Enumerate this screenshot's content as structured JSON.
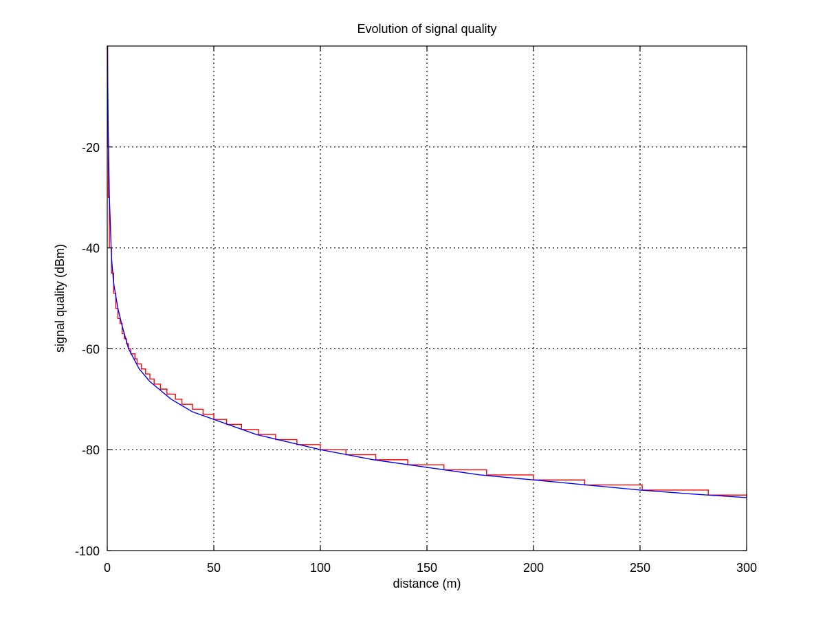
{
  "chart_data": {
    "type": "line",
    "title": "Evolution of signal quality",
    "xlabel": "distance (m)",
    "ylabel": "signal quality (dBm)",
    "xlim": [
      0,
      300
    ],
    "ylim": [
      -100,
      0
    ],
    "xticks": [
      0,
      50,
      100,
      150,
      200,
      250,
      300
    ],
    "yticks": [
      -100,
      -80,
      -60,
      -40,
      -20
    ],
    "grid": true,
    "series": [
      {
        "style": "step",
        "color": "#ff0000",
        "step_thresholds": [
          {
            "x": 0.2,
            "y": -20
          },
          {
            "x": 0.5,
            "y": -30
          },
          {
            "x": 1,
            "y": -40
          },
          {
            "x": 2,
            "y": -45
          },
          {
            "x": 3,
            "y": -49
          },
          {
            "x": 4,
            "y": -52
          },
          {
            "x": 5,
            "y": -54
          },
          {
            "x": 6,
            "y": -55
          },
          {
            "x": 7,
            "y": -57
          },
          {
            "x": 8,
            "y": -58
          },
          {
            "x": 9,
            "y": -59
          },
          {
            "x": 10,
            "y": -60
          },
          {
            "x": 11,
            "y": -61
          },
          {
            "x": 13,
            "y": -62
          },
          {
            "x": 14,
            "y": -63
          },
          {
            "x": 16,
            "y": -64
          },
          {
            "x": 18,
            "y": -65
          },
          {
            "x": 20,
            "y": -66
          },
          {
            "x": 22,
            "y": -67
          },
          {
            "x": 25,
            "y": -68
          },
          {
            "x": 28,
            "y": -69
          },
          {
            "x": 32,
            "y": -70
          },
          {
            "x": 35,
            "y": -71
          },
          {
            "x": 40,
            "y": -72
          },
          {
            "x": 45,
            "y": -73
          },
          {
            "x": 50,
            "y": -74
          },
          {
            "x": 56,
            "y": -75
          },
          {
            "x": 63,
            "y": -76
          },
          {
            "x": 71,
            "y": -77
          },
          {
            "x": 79,
            "y": -78
          },
          {
            "x": 89,
            "y": -79
          },
          {
            "x": 100,
            "y": -80
          },
          {
            "x": 112,
            "y": -81
          },
          {
            "x": 126,
            "y": -82
          },
          {
            "x": 141,
            "y": -83
          },
          {
            "x": 158,
            "y": -84
          },
          {
            "x": 178,
            "y": -85
          },
          {
            "x": 200,
            "y": -86
          },
          {
            "x": 224,
            "y": -87
          },
          {
            "x": 251,
            "y": -88
          },
          {
            "x": 282,
            "y": -89
          },
          {
            "x": 300,
            "y": -89.5
          }
        ]
      },
      {
        "style": "line",
        "color": "#0000ff",
        "points": [
          {
            "x": 0.1,
            "y": 0
          },
          {
            "x": 0.2,
            "y": -6
          },
          {
            "x": 0.5,
            "y": -18
          },
          {
            "x": 1,
            "y": -30
          },
          {
            "x": 2,
            "y": -42
          },
          {
            "x": 3,
            "y": -47
          },
          {
            "x": 5,
            "y": -52
          },
          {
            "x": 7,
            "y": -55.5
          },
          {
            "x": 10,
            "y": -60
          },
          {
            "x": 15,
            "y": -64
          },
          {
            "x": 20,
            "y": -66.5
          },
          {
            "x": 30,
            "y": -70
          },
          {
            "x": 40,
            "y": -72.5
          },
          {
            "x": 50,
            "y": -74
          },
          {
            "x": 60,
            "y": -75.5
          },
          {
            "x": 70,
            "y": -77
          },
          {
            "x": 80,
            "y": -78
          },
          {
            "x": 90,
            "y": -79
          },
          {
            "x": 100,
            "y": -80
          },
          {
            "x": 125,
            "y": -82
          },
          {
            "x": 150,
            "y": -83.5
          },
          {
            "x": 175,
            "y": -85
          },
          {
            "x": 200,
            "y": -86
          },
          {
            "x": 225,
            "y": -87
          },
          {
            "x": 250,
            "y": -88
          },
          {
            "x": 275,
            "y": -88.8
          },
          {
            "x": 300,
            "y": -89.5
          }
        ]
      }
    ]
  }
}
